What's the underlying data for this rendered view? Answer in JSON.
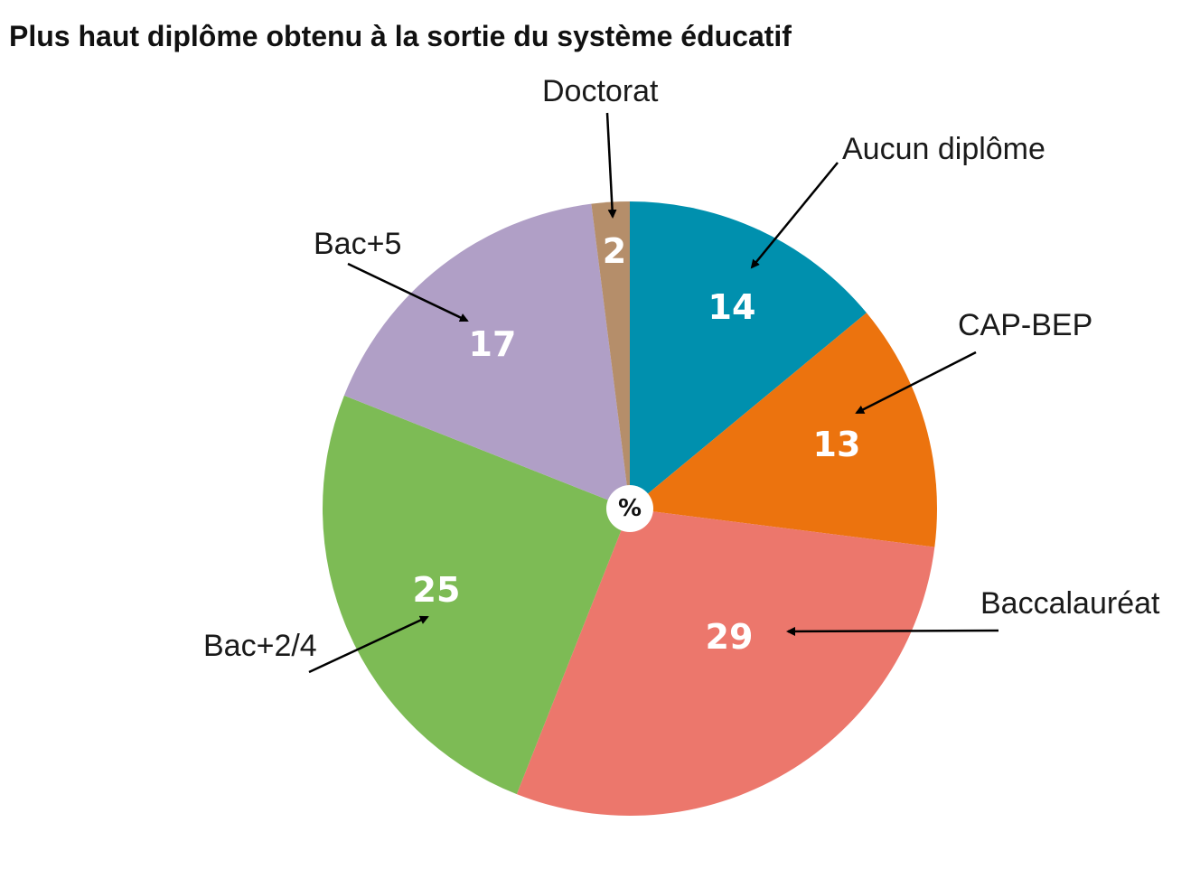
{
  "chart_data": {
    "type": "pie",
    "title": "Plus haut diplôme obtenu à la sortie du système éducatif",
    "unit_label": "%",
    "slices": [
      {
        "label": "Aucun diplôme",
        "value": 14,
        "color": "#0090AE"
      },
      {
        "label": "CAP-BEP",
        "value": 13,
        "color": "#EC730E"
      },
      {
        "label": "Baccalauréat",
        "value": 29,
        "color": "#EC776C"
      },
      {
        "label": "Bac+2/4",
        "value": 25,
        "color": "#7DBB55"
      },
      {
        "label": "Bac+5",
        "value": 17,
        "color": "#B09FC6"
      },
      {
        "label": "Doctorat",
        "value": 2,
        "color": "#B58E6A"
      }
    ]
  }
}
